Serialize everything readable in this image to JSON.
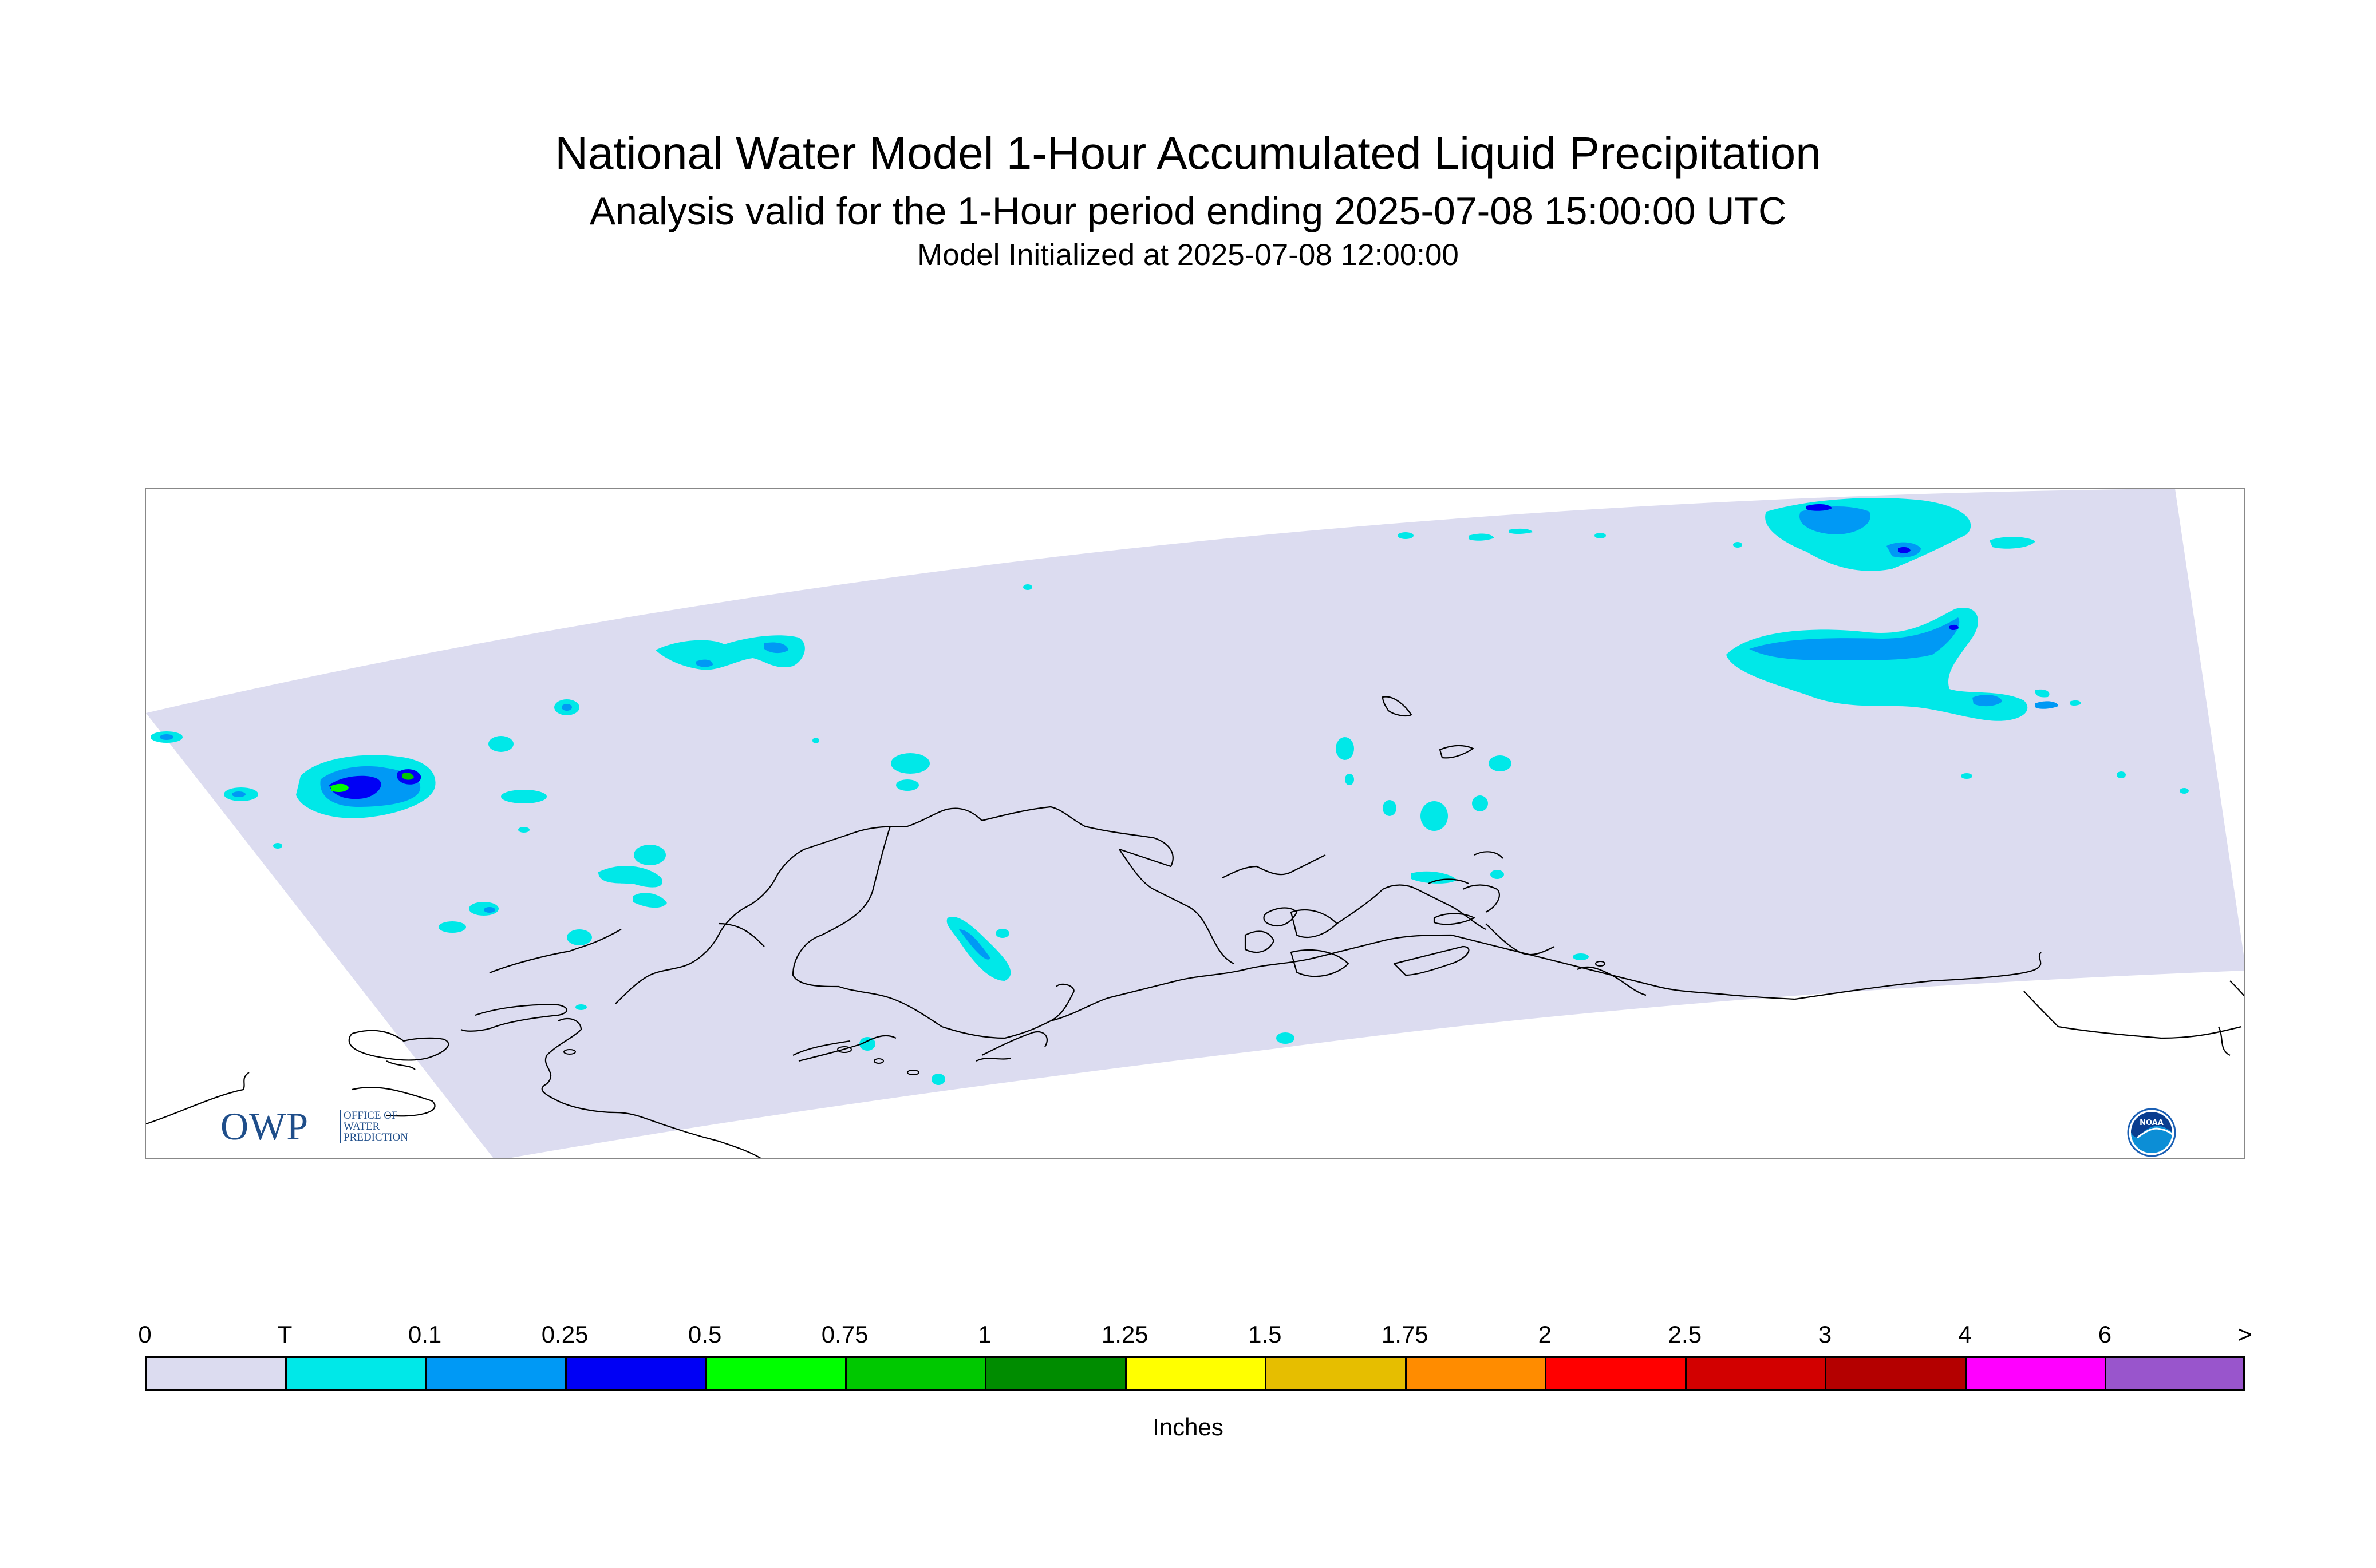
{
  "header": {
    "title": "National Water Model 1-Hour Accumulated Liquid Precipitation",
    "subtitle": "Analysis valid for the 1-Hour period ending 2025-07-08 15:00:00 UTC",
    "init_line": "Model Initialized at 2025-07-08 12:00:00"
  },
  "logos": {
    "owp_letters": "OWP",
    "owp_line1": "OFFICE OF",
    "owp_line2": "WATER",
    "owp_line3": "PREDICTION",
    "noaa": "NOAA"
  },
  "legend": {
    "units": "Inches",
    "tick_labels": [
      "0",
      "T",
      "0.1",
      "0.25",
      "0.5",
      "0.75",
      "1",
      "1.25",
      "1.5",
      "1.75",
      "2",
      "2.5",
      "3",
      "4",
      "6",
      ">"
    ],
    "colors": [
      "#dcdcf0",
      "#00e8e8",
      "#0099f5",
      "#0000f5",
      "#00ff00",
      "#00c800",
      "#008c00",
      "#ffff00",
      "#e6be00",
      "#ff8c00",
      "#ff0000",
      "#d20000",
      "#b40000",
      "#ff00ff",
      "#9955cc"
    ]
  },
  "colors": {
    "domain_fill": "#dcdcf0",
    "coastline": "#000000",
    "trace": "#00e8e8",
    "light": "#0099f5",
    "moderate": "#0000f5",
    "heavy": "#00ff00"
  }
}
